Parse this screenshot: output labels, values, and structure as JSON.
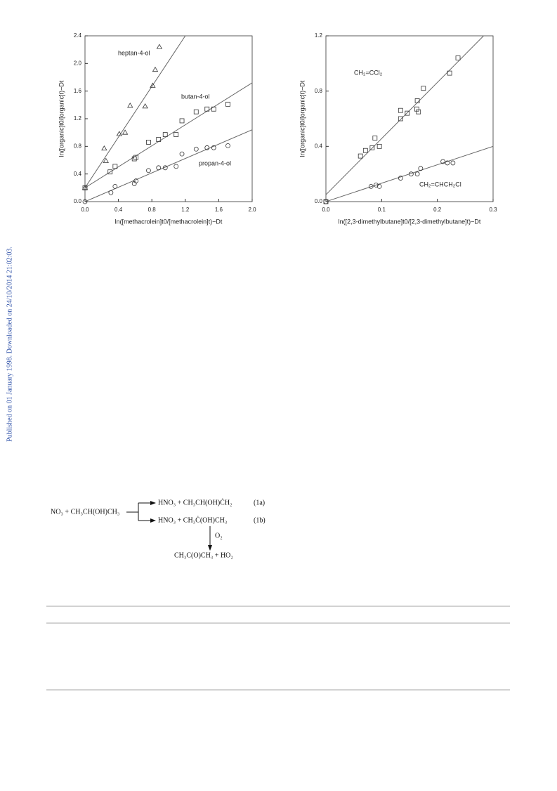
{
  "side_note": "Published on 01 January 1998. Downloaded on 24/10/2014 21:02:03.",
  "chart_data": [
    {
      "type": "scatter",
      "xlabel": "ln([methacrolein]t0/[methacrolein]t)−Dt",
      "ylabel": "ln([organic]t0/[organic]t)−Dt",
      "xlim": [
        0,
        2
      ],
      "ylim": [
        0,
        2.4
      ],
      "xticks": [
        {
          "value": 0,
          "label": "0.0"
        },
        0.4,
        0.8,
        1.2,
        1.6,
        {
          "value": 2,
          "label": "2.0"
        }
      ],
      "yticks": [
        {
          "value": 0,
          "label": "0.0"
        },
        0.4,
        0.8,
        1.2,
        1.6,
        {
          "value": 2,
          "label": "2.0"
        },
        2.4
      ],
      "series": [
        {
          "name": "heptan-4-ol",
          "marker": "triangle",
          "color": "#333333",
          "x": [
            0,
            0.23,
            0.25,
            0.41,
            0.48,
            0.54,
            0.72,
            0.81,
            0.84,
            0.89
          ],
          "values": [
            0.2,
            0.77,
            0.59,
            0.98,
            1.0,
            1.39,
            1.38,
            1.68,
            1.91,
            2.24
          ],
          "fit": {
            "x": [
              0,
              1.2
            ],
            "y": [
              0.2,
              2.4
            ]
          }
        },
        {
          "name": "butan-4-ol",
          "marker": "square",
          "color": "#333333",
          "x": [
            0,
            0.3,
            0.36,
            0.59,
            0.61,
            0.76,
            0.88,
            0.96,
            1.09,
            1.16,
            1.33,
            1.46,
            1.54,
            1.71
          ],
          "values": [
            0.2,
            0.43,
            0.51,
            0.62,
            0.64,
            0.86,
            0.9,
            0.97,
            0.97,
            1.17,
            1.3,
            1.34,
            1.34,
            1.41
          ],
          "fit": {
            "x": [
              0,
              2
            ],
            "y": [
              0.2,
              1.72
            ]
          }
        },
        {
          "name": "propan-4-ol",
          "marker": "circle",
          "color": "#333333",
          "x": [
            0,
            0.31,
            0.36,
            0.59,
            0.61,
            0.76,
            0.88,
            0.96,
            1.09,
            1.16,
            1.33,
            1.46,
            1.54,
            1.71
          ],
          "values": [
            0,
            0.13,
            0.22,
            0.26,
            0.3,
            0.45,
            0.49,
            0.49,
            0.51,
            0.69,
            0.76,
            0.78,
            0.78,
            0.81
          ],
          "fit": {
            "x": [
              0,
              2
            ],
            "y": [
              0,
              1.04
            ]
          }
        }
      ]
    },
    {
      "type": "scatter",
      "xlabel": "ln([2,3-dimethylbutane]t0/[2,3-dimethylbutane]t)−Dt",
      "ylabel": "ln([organic]t0/[organic]t)−Dt",
      "xlim": [
        0,
        0.3
      ],
      "ylim": [
        0,
        1.2
      ],
      "xticks": [
        {
          "value": 0,
          "label": "0.0"
        },
        0.1,
        0.2,
        0.3
      ],
      "yticks": [
        {
          "value": 0,
          "label": "0.0"
        },
        0.4,
        0.8,
        1.2
      ],
      "series": [
        {
          "name": "CH₂=CCl₂",
          "marker": "square",
          "color": "#333333",
          "x": [
            0,
            0.062,
            0.071,
            0.083,
            0.088,
            0.096,
            0.134,
            0.134,
            0.146,
            0.164,
            0.163,
            0.166,
            0.175,
            0.222,
            0.237
          ],
          "values": [
            0,
            0.33,
            0.37,
            0.39,
            0.46,
            0.4,
            0.6,
            0.66,
            0.64,
            0.73,
            0.67,
            0.65,
            0.82,
            0.93,
            1.04
          ],
          "fit": {
            "x": [
              0,
              0.283
            ],
            "y": [
              0.05,
              1.2
            ]
          }
        },
        {
          "name": "CH₂=CHCH₂Cl",
          "marker": "circle",
          "color": "#333333",
          "x": [
            0,
            0.081,
            0.09,
            0.096,
            0.134,
            0.153,
            0.164,
            0.17,
            0.21,
            0.218,
            0.228
          ],
          "values": [
            0,
            0.11,
            0.12,
            0.11,
            0.17,
            0.2,
            0.2,
            0.24,
            0.29,
            0.28,
            0.28
          ],
          "fit": {
            "x": [
              0,
              0.3
            ],
            "y": [
              0,
              0.4
            ]
          }
        }
      ]
    }
  ],
  "scheme": {
    "reactant": "NO₃ + CH₃CH(OH)CH₃",
    "product_1a": "HNO₃ + CH₃CH(OH)ĊH₂",
    "label_1a": "(1a)",
    "product_1b": "HNO₃ + CH₃Ċ(OH)CH₃",
    "label_1b": "(1b)",
    "reagent": "O₂",
    "final": "CH₃C(O)CH₃ + HO₂"
  }
}
